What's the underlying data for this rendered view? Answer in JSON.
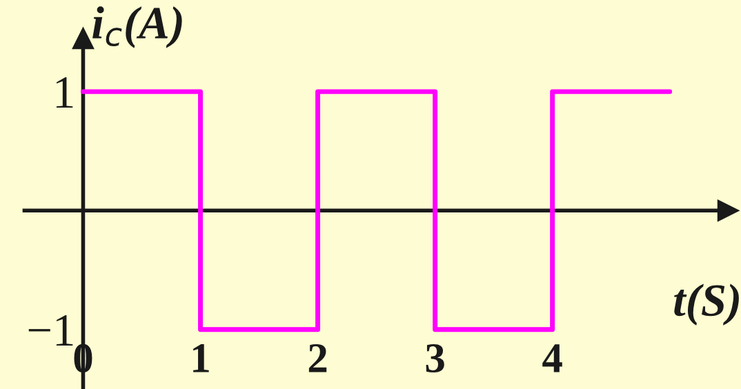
{
  "chart_data": {
    "type": "step",
    "xlabel": "t(S)",
    "ylabel": "i$_{c}$(A)",
    "x": [
      0,
      1,
      2,
      3,
      4,
      5
    ],
    "series": [
      {
        "color": "#ff00ff",
        "values": [
          1,
          -1,
          1,
          -1,
          1,
          1
        ]
      }
    ],
    "xlim": [
      -0.5,
      5.5
    ],
    "ylim": [
      -1.5,
      1.45
    ],
    "xticks": [
      0,
      1,
      2,
      3,
      4
    ],
    "yticks": [
      1,
      {
        "value": -1,
        "label": "−1"
      }
    ],
    "grid": false,
    "legend": false,
    "marker": "none",
    "line_style": "solid"
  }
}
